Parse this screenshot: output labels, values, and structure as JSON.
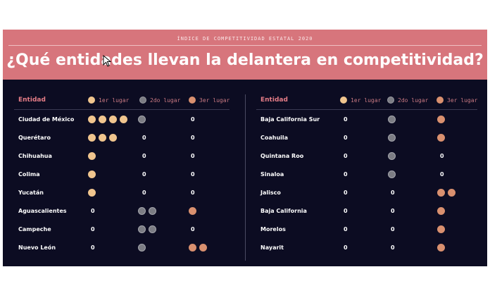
{
  "kicker": "ÍNDICE DE COMPETITIVIDAD ESTATAL 2020",
  "headline": "¿Qué entidades llevan la delantera en competitividad?",
  "colors": {
    "first": "#f0c58e",
    "second": "#7c7d84",
    "third": "#d9906f",
    "banner": "#d7757c",
    "background": "#0c0c22"
  },
  "header": {
    "entity": "Entidad",
    "first": "1er lugar",
    "second": "2do lugar",
    "third": "3er lugar"
  },
  "left_rows": [
    {
      "name": "Ciudad de México",
      "first": 4,
      "second": 1,
      "third": 0
    },
    {
      "name": "Querétaro",
      "first": 3,
      "second": 0,
      "third": 0
    },
    {
      "name": "Chihuahua",
      "first": 1,
      "second": 0,
      "third": 0
    },
    {
      "name": "Colima",
      "first": 1,
      "second": 0,
      "third": 0
    },
    {
      "name": "Yucatán",
      "first": 1,
      "second": 0,
      "third": 0
    },
    {
      "name": "Aguascalientes",
      "first": 0,
      "second": 2,
      "third": 1
    },
    {
      "name": "Campeche",
      "first": 0,
      "second": 2,
      "third": 0
    },
    {
      "name": "Nuevo León",
      "first": 0,
      "second": 1,
      "third": 2
    }
  ],
  "right_rows": [
    {
      "name": "Baja California Sur",
      "first": 0,
      "second": 1,
      "third": 1
    },
    {
      "name": "Coahuila",
      "first": 0,
      "second": 1,
      "third": 1
    },
    {
      "name": "Quintana Roo",
      "first": 0,
      "second": 1,
      "third": 0
    },
    {
      "name": "Sinaloa",
      "first": 0,
      "second": 1,
      "third": 0
    },
    {
      "name": "Jalisco",
      "first": 0,
      "second": 0,
      "third": 2
    },
    {
      "name": "Baja California",
      "first": 0,
      "second": 0,
      "third": 1
    },
    {
      "name": "Morelos",
      "first": 0,
      "second": 0,
      "third": 1
    },
    {
      "name": "Nayarit",
      "first": 0,
      "second": 0,
      "third": 1
    }
  ]
}
